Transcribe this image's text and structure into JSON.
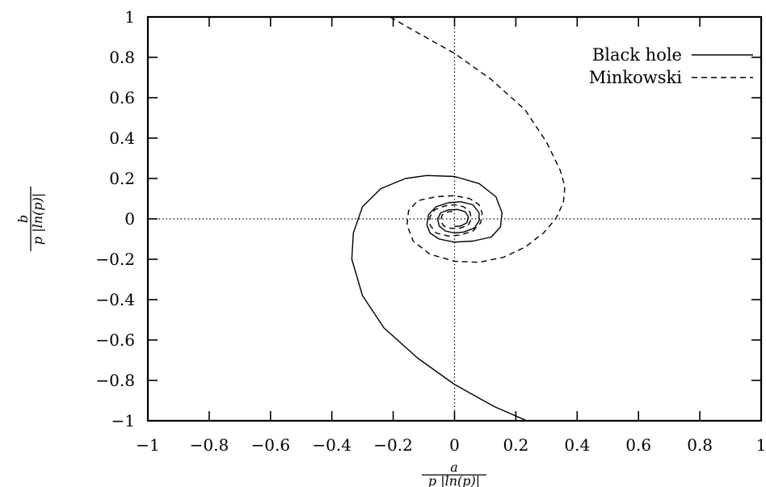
{
  "chart_data": {
    "type": "line",
    "title": "",
    "xlabel": {
      "numerator": "a",
      "denominator": "p |ln(p)|"
    },
    "ylabel": {
      "numerator": "b",
      "denominator": "p |ln(p)|"
    },
    "xlim": [
      -1,
      1
    ],
    "ylim": [
      -1,
      1
    ],
    "x_ticks": [
      -1,
      -0.8,
      -0.6,
      -0.4,
      -0.2,
      0,
      0.2,
      0.4,
      0.6,
      0.8,
      1
    ],
    "x_tick_labels": [
      "−1",
      "−0.8",
      "−0.6",
      "−0.4",
      "−0.2",
      "0",
      "0.2",
      "0.4",
      "0.6",
      "0.8",
      "1"
    ],
    "y_ticks": [
      1,
      0.8,
      0.6,
      0.4,
      0.2,
      0,
      -0.2,
      -0.4,
      -0.6,
      -0.8,
      -1
    ],
    "y_tick_labels": [
      "1",
      "0.8",
      "0.6",
      "0.4",
      "0.2",
      "0",
      "−0.2",
      "−0.4",
      "−0.6",
      "−0.8",
      "−1"
    ],
    "zero_axes": "dotted",
    "legend_position": "top-right",
    "series": [
      {
        "name": "Black hole",
        "line_style": "solid",
        "color": "#000000",
        "points": [
          [
            0.236,
            -1.0
          ],
          [
            0.13,
            -0.93
          ],
          [
            0.0,
            -0.82
          ],
          [
            -0.12,
            -0.69
          ],
          [
            -0.23,
            -0.54
          ],
          [
            -0.3,
            -0.38
          ],
          [
            -0.335,
            -0.2
          ],
          [
            -0.33,
            -0.07
          ],
          [
            -0.3,
            0.06
          ],
          [
            -0.24,
            0.15
          ],
          [
            -0.16,
            0.2
          ],
          [
            -0.09,
            0.215
          ],
          [
            0.0,
            0.21
          ],
          [
            0.08,
            0.175
          ],
          [
            0.135,
            0.11
          ],
          [
            0.155,
            0.03
          ],
          [
            0.15,
            -0.04
          ],
          [
            0.12,
            -0.09
          ],
          [
            0.06,
            -0.11
          ],
          [
            0.0,
            -0.115
          ],
          [
            -0.05,
            -0.1
          ],
          [
            -0.08,
            -0.07
          ],
          [
            -0.09,
            -0.03
          ],
          [
            -0.085,
            0.02
          ],
          [
            -0.06,
            0.06
          ],
          [
            -0.02,
            0.08
          ],
          [
            0.02,
            0.085
          ],
          [
            0.06,
            0.07
          ],
          [
            0.08,
            0.03
          ],
          [
            0.08,
            -0.01
          ],
          [
            0.065,
            -0.045
          ],
          [
            0.03,
            -0.065
          ],
          [
            0.0,
            -0.07
          ],
          [
            -0.03,
            -0.06
          ],
          [
            -0.05,
            -0.035
          ],
          [
            -0.055,
            0.0
          ],
          [
            -0.045,
            0.03
          ],
          [
            -0.02,
            0.045
          ],
          [
            0.01,
            0.047
          ],
          [
            0.035,
            0.035
          ],
          [
            0.045,
            0.01
          ],
          [
            0.04,
            -0.02
          ],
          [
            0.02,
            -0.035
          ],
          [
            0.0,
            -0.038
          ]
        ]
      },
      {
        "name": "Minkowski",
        "line_style": "dashed",
        "color": "#000000",
        "points": [
          [
            -0.21,
            1.0
          ],
          [
            -0.13,
            0.93
          ],
          [
            0.0,
            0.82
          ],
          [
            0.12,
            0.69
          ],
          [
            0.23,
            0.54
          ],
          [
            0.3,
            0.38
          ],
          [
            0.345,
            0.24
          ],
          [
            0.36,
            0.16
          ],
          [
            0.355,
            0.08
          ],
          [
            0.33,
            0.0
          ],
          [
            0.29,
            -0.07
          ],
          [
            0.23,
            -0.14
          ],
          [
            0.16,
            -0.19
          ],
          [
            0.08,
            -0.215
          ],
          [
            0.0,
            -0.21
          ],
          [
            -0.08,
            -0.175
          ],
          [
            -0.135,
            -0.11
          ],
          [
            -0.155,
            -0.03
          ],
          [
            -0.15,
            0.04
          ],
          [
            -0.12,
            0.09
          ],
          [
            -0.06,
            0.11
          ],
          [
            0.0,
            0.115
          ],
          [
            0.05,
            0.1
          ],
          [
            0.08,
            0.07
          ],
          [
            0.09,
            0.03
          ],
          [
            0.085,
            -0.02
          ],
          [
            0.06,
            -0.06
          ],
          [
            0.02,
            -0.08
          ],
          [
            -0.02,
            -0.085
          ],
          [
            -0.06,
            -0.07
          ],
          [
            -0.08,
            -0.03
          ],
          [
            -0.08,
            0.01
          ],
          [
            -0.065,
            0.045
          ],
          [
            -0.03,
            0.065
          ],
          [
            0.0,
            0.07
          ],
          [
            0.03,
            0.06
          ],
          [
            0.05,
            0.035
          ],
          [
            0.055,
            0.0
          ],
          [
            0.045,
            -0.03
          ],
          [
            0.02,
            -0.045
          ],
          [
            -0.01,
            -0.047
          ],
          [
            -0.035,
            -0.035
          ],
          [
            -0.045,
            -0.01
          ],
          [
            -0.04,
            0.02
          ],
          [
            -0.02,
            0.035
          ],
          [
            0.0,
            0.038
          ]
        ]
      }
    ]
  }
}
